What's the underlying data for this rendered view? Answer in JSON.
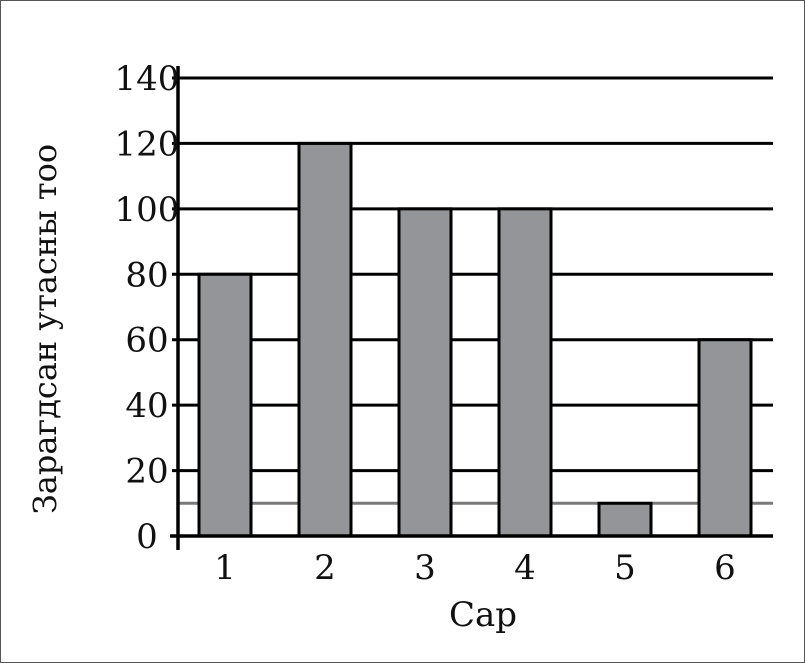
{
  "chart_data": {
    "type": "bar",
    "title": "",
    "xlabel": "Сар",
    "ylabel": "Зарагдсан утасны тоо",
    "categories": [
      "1",
      "2",
      "3",
      "4",
      "5",
      "6"
    ],
    "values": [
      80,
      120,
      100,
      100,
      10,
      60
    ],
    "ylim": [
      0,
      140
    ],
    "yticks": [
      "0",
      "20",
      "40",
      "60",
      "80",
      "100",
      "120",
      "140"
    ],
    "grid": true,
    "reference_line": 10,
    "colors": {
      "bar_fill": "#939598",
      "bar_stroke": "#000000",
      "grid": "#000000",
      "reference_line": "#7a7a7a"
    }
  }
}
